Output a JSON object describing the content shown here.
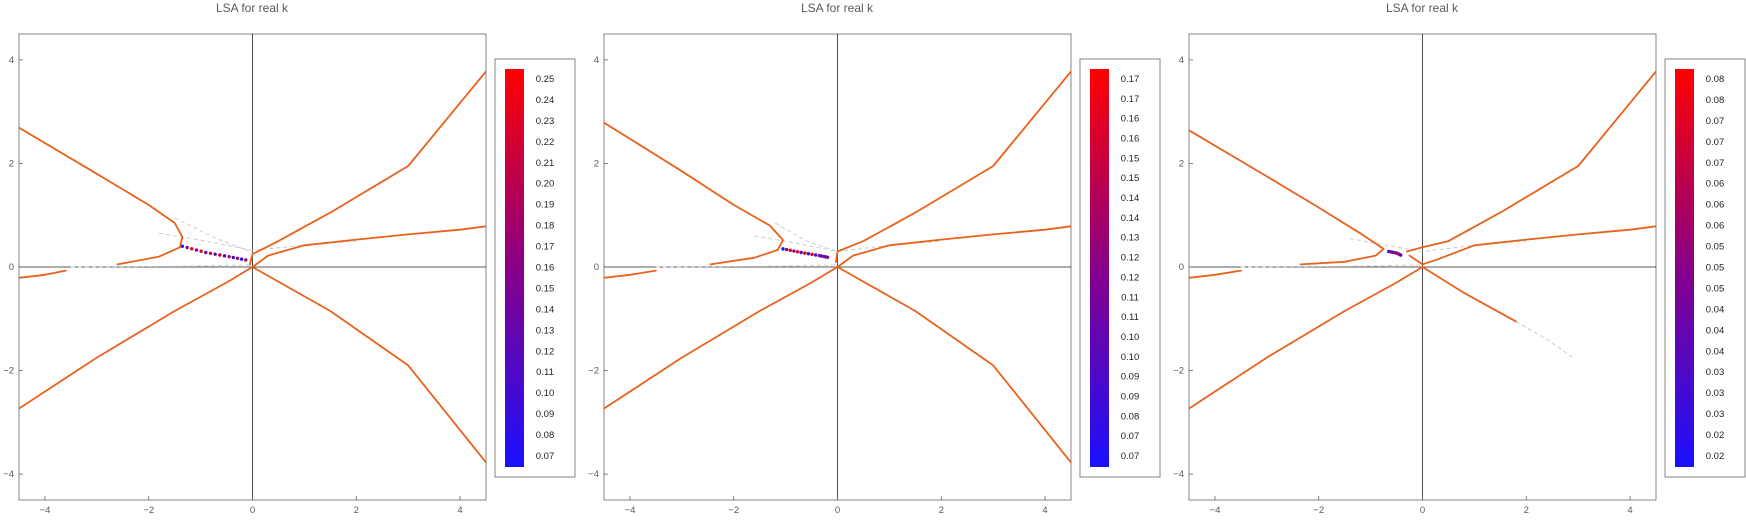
{
  "colors": {
    "curve": "#e8621c",
    "dashed": "#cccccc",
    "axis": "#222222",
    "frame": "#666666",
    "unstable_low": "#1a10ff",
    "unstable_high": "#ff0000"
  },
  "chart_data": [
    {
      "type": "line",
      "title": "LSA for real k",
      "xlim": [
        -4.5,
        4.5
      ],
      "ylim": [
        -4.5,
        4.5
      ],
      "xticks": [
        -4,
        -2,
        0,
        2,
        4
      ],
      "yticks": [
        -4,
        -2,
        0,
        2,
        4
      ],
      "xtick_labels": [
        "−4",
        "−2",
        "0",
        "2",
        "4"
      ],
      "ytick_labels": [
        "−4",
        "−2",
        "0",
        "2",
        "4"
      ],
      "grid": false,
      "legend": "colorbar-right",
      "colorbar_ticks": [
        "0.25",
        "0.24",
        "0.23",
        "0.22",
        "0.21",
        "0.20",
        "0.19",
        "0.18",
        "0.17",
        "0.16",
        "0.15",
        "0.14",
        "0.13",
        "0.12",
        "0.11",
        "0.10",
        "0.09",
        "0.08",
        "0.07"
      ],
      "series": [
        {
          "style": "solid",
          "points": [
            [
              -4.6,
              2.75
            ],
            [
              -3,
              1.8
            ],
            [
              -2,
              1.2
            ],
            [
              -1.5,
              0.85
            ],
            [
              -1.35,
              0.58
            ],
            [
              -1.4,
              0.38
            ],
            [
              -1.8,
              0.2
            ],
            [
              -2.6,
              0.05
            ]
          ]
        },
        {
          "style": "solid",
          "points": [
            [
              -4.6,
              -0.22
            ],
            [
              -4,
              -0.15
            ],
            [
              -3.6,
              -0.07
            ]
          ]
        },
        {
          "style": "solid",
          "points": [
            [
              -4.6,
              -2.8
            ],
            [
              -3,
              -1.75
            ],
            [
              -1.5,
              -0.85
            ],
            [
              -0.5,
              -0.3
            ],
            [
              0,
              0
            ]
          ]
        },
        {
          "style": "solid",
          "points": [
            [
              0,
              0
            ],
            [
              1.5,
              -0.85
            ],
            [
              3,
              -1.9
            ],
            [
              4.6,
              -3.9
            ]
          ]
        },
        {
          "style": "solid",
          "points": [
            [
              -0.05,
              0.05
            ],
            [
              0,
              0.25
            ],
            [
              0.5,
              0.5
            ],
            [
              1.5,
              1.05
            ],
            [
              3,
              1.95
            ],
            [
              4.6,
              3.9
            ]
          ]
        },
        {
          "style": "solid",
          "points": [
            [
              0,
              0
            ],
            [
              0.3,
              0.22
            ],
            [
              1,
              0.42
            ],
            [
              2,
              0.53
            ],
            [
              3,
              0.63
            ],
            [
              4,
              0.72
            ],
            [
              4.6,
              0.8
            ]
          ]
        },
        {
          "style": "dashed",
          "points": [
            [
              -3.5,
              0.0
            ],
            [
              -2,
              0.01
            ],
            [
              -1,
              0.02
            ],
            [
              0,
              0.04
            ]
          ]
        },
        {
          "style": "dashed",
          "points": [
            [
              -1.8,
              0.65
            ],
            [
              -1,
              0.52
            ],
            [
              0,
              0.32
            ],
            [
              1,
              0.42
            ],
            [
              2,
              0.5
            ]
          ]
        },
        {
          "style": "dashed",
          "points": [
            [
              -1.5,
              0.95
            ],
            [
              -0.7,
              0.55
            ],
            [
              0,
              0.28
            ]
          ]
        },
        {
          "style": "unstable",
          "points": [
            [
              -1.35,
              0.4
            ],
            [
              -0.9,
              0.28
            ],
            [
              -0.45,
              0.2
            ],
            [
              -0.05,
              0.12
            ]
          ]
        }
      ]
    },
    {
      "type": "line",
      "title": "LSA for real k",
      "xlim": [
        -4.5,
        4.5
      ],
      "ylim": [
        -4.5,
        4.5
      ],
      "xticks": [
        -4,
        -2,
        0,
        2,
        4
      ],
      "yticks": [
        -4,
        -2,
        0,
        2,
        4
      ],
      "xtick_labels": [
        "−4",
        "−2",
        "0",
        "2",
        "4"
      ],
      "ytick_labels": [
        "−4",
        "−2",
        "0",
        "2",
        "4"
      ],
      "grid": false,
      "legend": "colorbar-right",
      "colorbar_ticks": [
        "0.17",
        "0.17",
        "0.16",
        "0.16",
        "0.15",
        "0.15",
        "0.14",
        "0.14",
        "0.13",
        "0.12",
        "0.12",
        "0.11",
        "0.11",
        "0.10",
        "0.10",
        "0.09",
        "0.09",
        "0.08",
        "0.07",
        "0.07"
      ],
      "series": [
        {
          "style": "solid",
          "points": [
            [
              -4.6,
              2.85
            ],
            [
              -3,
              1.85
            ],
            [
              -2,
              1.2
            ],
            [
              -1.3,
              0.8
            ],
            [
              -1.05,
              0.52
            ],
            [
              -1.15,
              0.33
            ],
            [
              -1.6,
              0.18
            ],
            [
              -2.45,
              0.05
            ]
          ]
        },
        {
          "style": "solid",
          "points": [
            [
              -4.6,
              -0.22
            ],
            [
              -4,
              -0.15
            ],
            [
              -3.5,
              -0.07
            ]
          ]
        },
        {
          "style": "solid",
          "points": [
            [
              -4.6,
              -2.8
            ],
            [
              -3,
              -1.75
            ],
            [
              -1.5,
              -0.85
            ],
            [
              -0.5,
              -0.3
            ],
            [
              0,
              0
            ]
          ]
        },
        {
          "style": "solid",
          "points": [
            [
              0,
              0
            ],
            [
              1.5,
              -0.85
            ],
            [
              3,
              -1.9
            ],
            [
              4.6,
              -3.9
            ]
          ]
        },
        {
          "style": "solid",
          "points": [
            [
              -0.03,
              0.1
            ],
            [
              0,
              0.3
            ],
            [
              0.5,
              0.5
            ],
            [
              1.5,
              1.05
            ],
            [
              3,
              1.95
            ],
            [
              4.6,
              3.9
            ]
          ]
        },
        {
          "style": "solid",
          "points": [
            [
              0,
              0
            ],
            [
              0.3,
              0.22
            ],
            [
              1,
              0.42
            ],
            [
              2,
              0.53
            ],
            [
              3,
              0.63
            ],
            [
              4,
              0.72
            ],
            [
              4.6,
              0.8
            ]
          ]
        },
        {
          "style": "dashed",
          "points": [
            [
              -3.5,
              0.0
            ],
            [
              -2,
              0.01
            ],
            [
              -1,
              0.02
            ],
            [
              0,
              0.04
            ]
          ]
        },
        {
          "style": "dashed",
          "points": [
            [
              -1.6,
              0.6
            ],
            [
              -0.9,
              0.48
            ],
            [
              0,
              0.3
            ],
            [
              1,
              0.42
            ],
            [
              2,
              0.5
            ]
          ]
        },
        {
          "style": "dashed",
          "points": [
            [
              -1.2,
              0.85
            ],
            [
              -0.6,
              0.5
            ],
            [
              0,
              0.3
            ]
          ]
        },
        {
          "style": "unstable",
          "points": [
            [
              -1.05,
              0.35
            ],
            [
              -0.7,
              0.28
            ],
            [
              -0.35,
              0.22
            ],
            [
              -0.15,
              0.18
            ]
          ]
        }
      ]
    },
    {
      "type": "line",
      "title": "LSA for real k",
      "xlim": [
        -4.5,
        4.5
      ],
      "ylim": [
        -4.5,
        4.5
      ],
      "xticks": [
        -4,
        -2,
        0,
        2,
        4
      ],
      "yticks": [
        -4,
        -2,
        0,
        2,
        4
      ],
      "xtick_labels": [
        "−4",
        "−2",
        "0",
        "2",
        "4"
      ],
      "ytick_labels": [
        "−4",
        "−2",
        "0",
        "2",
        "4"
      ],
      "grid": false,
      "legend": "colorbar-right",
      "colorbar_ticks": [
        "0.08",
        "0.08",
        "0.07",
        "0.07",
        "0.07",
        "0.06",
        "0.06",
        "0.06",
        "0.05",
        "0.05",
        "0.05",
        "0.04",
        "0.04",
        "0.04",
        "0.03",
        "0.03",
        "0.03",
        "0.02",
        "0.02"
      ],
      "series": [
        {
          "style": "solid",
          "points": [
            [
              -4.6,
              2.7
            ],
            [
              -3,
              1.75
            ],
            [
              -2,
              1.15
            ],
            [
              -1.2,
              0.65
            ],
            [
              -0.75,
              0.35
            ],
            [
              -0.9,
              0.22
            ],
            [
              -1.5,
              0.1
            ],
            [
              -2.35,
              0.05
            ]
          ]
        },
        {
          "style": "solid",
          "points": [
            [
              -4.6,
              -0.22
            ],
            [
              -4,
              -0.15
            ],
            [
              -3.5,
              -0.07
            ]
          ]
        },
        {
          "style": "solid",
          "points": [
            [
              -4.6,
              -2.8
            ],
            [
              -3,
              -1.75
            ],
            [
              -1.5,
              -0.85
            ],
            [
              -0.5,
              -0.3
            ],
            [
              0,
              0
            ]
          ]
        },
        {
          "style": "solid",
          "points": [
            [
              0,
              0
            ],
            [
              0.8,
              -0.5
            ],
            [
              1.8,
              -1.05
            ]
          ]
        },
        {
          "style": "solid",
          "points": [
            [
              -0.3,
              0.3
            ],
            [
              0,
              0.38
            ],
            [
              0.5,
              0.5
            ],
            [
              1.5,
              1.05
            ],
            [
              3,
              1.95
            ],
            [
              4.6,
              3.9
            ]
          ]
        },
        {
          "style": "solid",
          "points": [
            [
              -0.25,
              0.22
            ],
            [
              0,
              0.05
            ],
            [
              0.3,
              0.15
            ],
            [
              1,
              0.42
            ],
            [
              2,
              0.53
            ],
            [
              3,
              0.63
            ],
            [
              4,
              0.72
            ],
            [
              4.6,
              0.8
            ]
          ]
        },
        {
          "style": "dashed",
          "points": [
            [
              -3.5,
              0.0
            ],
            [
              -2,
              0.01
            ],
            [
              -1,
              0.02
            ],
            [
              0,
              0.04
            ]
          ]
        },
        {
          "style": "dashed",
          "points": [
            [
              1.8,
              -1.05
            ],
            [
              2.4,
              -1.4
            ],
            [
              2.9,
              -1.75
            ]
          ]
        },
        {
          "style": "dashed",
          "points": [
            [
              -1.4,
              0.55
            ],
            [
              -0.7,
              0.42
            ],
            [
              0,
              0.3
            ],
            [
              1,
              0.42
            ],
            [
              2,
              0.5
            ]
          ]
        },
        {
          "style": "unstable",
          "points": [
            [
              -0.65,
              0.3
            ],
            [
              -0.5,
              0.27
            ],
            [
              -0.4,
              0.22
            ]
          ]
        }
      ]
    }
  ]
}
